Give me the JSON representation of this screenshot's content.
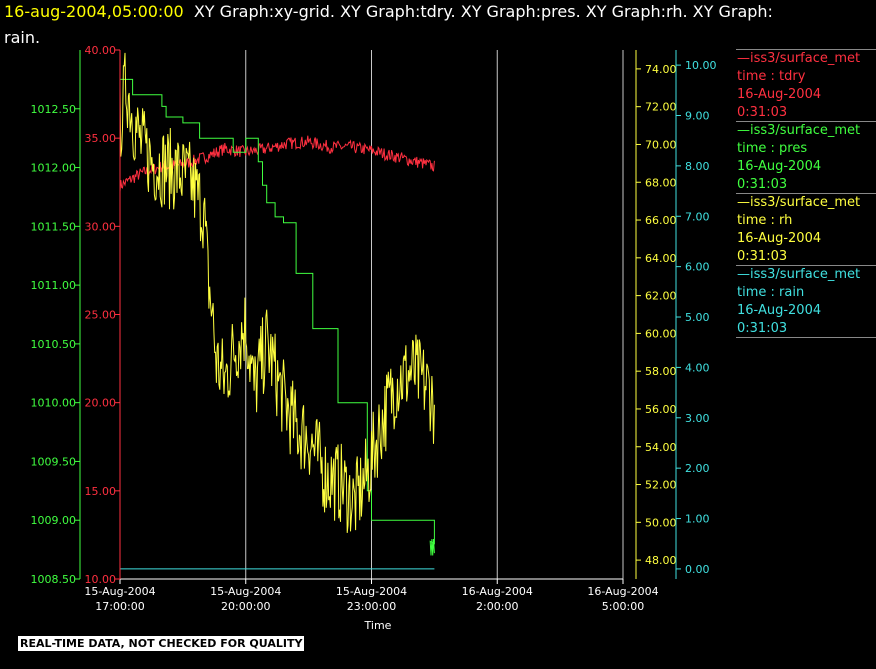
{
  "header": {
    "date": "16-aug-2004,05:00:00",
    "line1_rest": "XY Graph:xy-grid.  XY Graph:tdry.  XY Graph:pres.  XY Graph:rh.  XY Graph:",
    "line2": "rain."
  },
  "legend": [
    {
      "source": "iss3/surface_met",
      "var": "time : tdry",
      "date": "16-Aug-2004",
      "time": "0:31:03",
      "color": "#ff3040"
    },
    {
      "source": "iss3/surface_met",
      "var": "time : pres",
      "date": "16-Aug-2004",
      "time": "0:31:03",
      "color": "#40ff40"
    },
    {
      "source": "iss3/surface_met",
      "var": "time : rh",
      "date": "16-Aug-2004",
      "time": "0:31:03",
      "color": "#ffff40"
    },
    {
      "source": "iss3/surface_met",
      "var": "time : rain",
      "date": "16-Aug-2004",
      "time": "0:31:03",
      "color": "#40e0e0"
    }
  ],
  "disclaimer": "REAL-TIME DATA, NOT CHECKED FOR QUALITY",
  "chart_data": {
    "type": "line",
    "xlabel": "Time",
    "xlim_hours": [
      0,
      12
    ],
    "x_ticks": [
      {
        "hour": 0,
        "date": "15-Aug-2004",
        "time": "17:00:00"
      },
      {
        "hour": 3,
        "date": "15-Aug-2004",
        "time": "20:00:00"
      },
      {
        "hour": 6,
        "date": "15-Aug-2004",
        "time": "23:00:00"
      },
      {
        "hour": 9,
        "date": "16-Aug-2004",
        "time": "2:00:00"
      },
      {
        "hour": 12,
        "date": "16-Aug-2004",
        "time": "5:00:00"
      }
    ],
    "axes": {
      "pres": {
        "min": 1008.5,
        "max": 1013.0,
        "ticks": [
          "1008.50",
          "1009.00",
          "1009.50",
          "1010.00",
          "1010.50",
          "1011.00",
          "1011.50",
          "1012.00",
          "1012.50"
        ],
        "color": "#40ff40"
      },
      "tdry": {
        "min": 10,
        "max": 40,
        "ticks": [
          "10.00",
          "15.00",
          "20.00",
          "25.00",
          "30.00",
          "35.00",
          "40.00"
        ],
        "color": "#ff3040"
      },
      "rh": {
        "min": 47,
        "max": 75,
        "ticks": [
          "48.00",
          "50.00",
          "52.00",
          "54.00",
          "56.00",
          "58.00",
          "60.00",
          "62.00",
          "64.00",
          "66.00",
          "68.00",
          "70.00",
          "72.00",
          "74.00"
        ],
        "color": "#ffff40"
      },
      "rain": {
        "min": -0.2,
        "max": 10.3,
        "ticks": [
          "0.00",
          "1.00",
          "2.00",
          "3.00",
          "4.00",
          "5.00",
          "6.00",
          "7.00",
          "8.00",
          "9.00",
          "10.00"
        ],
        "color": "#40e0e0"
      }
    },
    "series": [
      {
        "name": "iss3/surface_met time : tdry",
        "color": "#ff3040",
        "x": [
          0,
          0.5,
          1,
          1.5,
          2,
          2.5,
          3,
          3.5,
          4,
          4.5,
          5,
          5.5,
          6,
          6.5,
          7,
          7.5
        ],
        "y": [
          32.3,
          33.0,
          33.4,
          33.5,
          33.9,
          34.4,
          34.2,
          34.4,
          34.7,
          34.8,
          34.5,
          34.5,
          34.3,
          34.0,
          33.7,
          33.4
        ]
      },
      {
        "name": "iss3/surface_met time : pres",
        "color": "#40ff40",
        "x": [
          0,
          0.15,
          0.3,
          0.7,
          1.0,
          1.1,
          1.5,
          1.9,
          2.5,
          2.7,
          2.9,
          3.0,
          3.3,
          3.4,
          3.5,
          3.7,
          3.9,
          4.2,
          4.6,
          5.2,
          5.9,
          6.0,
          7.3,
          7.5
        ],
        "y": [
          1012.75,
          1012.75,
          1012.62,
          1012.62,
          1012.52,
          1012.43,
          1012.38,
          1012.25,
          1012.25,
          1012.13,
          1012.13,
          1012.25,
          1012.05,
          1011.85,
          1011.7,
          1011.58,
          1011.53,
          1011.1,
          1010.63,
          1010.0,
          1009.25,
          1009.0,
          1009.0,
          1008.8
        ]
      },
      {
        "name": "iss3/surface_met time : rh",
        "color": "#ffff40",
        "x": [
          0,
          0.15,
          0.3,
          0.5,
          0.8,
          1.1,
          1.4,
          1.7,
          2.0,
          2.1,
          2.2,
          2.3,
          2.5,
          2.7,
          3.0,
          3.2,
          3.5,
          3.9,
          4.2,
          4.5,
          4.9,
          5.3,
          5.6,
          5.9,
          6.2,
          6.6,
          7.0,
          7.4,
          7.5
        ],
        "y": [
          71.0,
          73.3,
          71.5,
          70.0,
          69.0,
          68.8,
          68.5,
          68.0,
          66.5,
          63.0,
          61.0,
          58.5,
          57.5,
          59.0,
          60.5,
          57.0,
          59.5,
          56.5,
          55.0,
          54.5,
          52.5,
          52.0,
          51.0,
          52.5,
          55.0,
          57.5,
          58.0,
          57.0,
          56.0
        ]
      },
      {
        "name": "iss3/surface_met time : rain",
        "color": "#40e0e0",
        "x": [
          0,
          7.5
        ],
        "y": [
          0.0,
          0.0
        ]
      }
    ]
  }
}
